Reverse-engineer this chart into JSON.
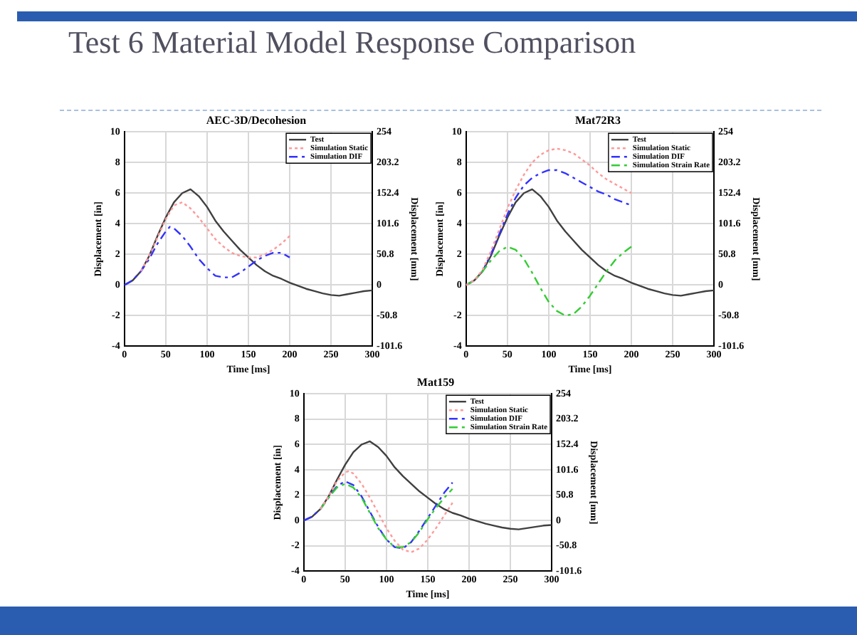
{
  "chart_data": [
    {
      "type": "line",
      "title": "AEC-3D/Decohesion",
      "xlabel": "Time [ms]",
      "ylabel": "Displacement [in]",
      "y2label": "Displacement [mm]",
      "annotations": [
        "Test 6 Material Model Response Comparison"
      ],
      "xlim": [
        0,
        300
      ],
      "xticks": [
        0,
        50,
        100,
        150,
        200,
        250,
        300
      ],
      "ylim": [
        -4,
        10
      ],
      "yticks": [
        -4,
        -2,
        0,
        2,
        4,
        6,
        8,
        10
      ],
      "y2lim": [
        -101.6,
        254
      ],
      "y2ticks": [
        -101.6,
        -50.8,
        0,
        50.8,
        101.6,
        152.4,
        203.2,
        254
      ],
      "grid": true,
      "legend": "top right",
      "marker": "none",
      "series": [
        {
          "name": "Test",
          "color": "#404040",
          "line_style": "solid",
          "x": [
            0,
            10,
            20,
            30,
            40,
            50,
            60,
            70,
            80,
            90,
            100,
            110,
            120,
            130,
            140,
            150,
            160,
            170,
            180,
            190,
            200,
            210,
            220,
            230,
            240,
            250,
            260,
            270,
            280,
            290,
            300
          ],
          "values": [
            0,
            0.3,
            0.9,
            1.9,
            3.2,
            4.4,
            5.4,
            6.0,
            6.25,
            5.8,
            5.1,
            4.2,
            3.5,
            2.9,
            2.3,
            1.8,
            1.3,
            0.9,
            0.6,
            0.4,
            0.15,
            -0.05,
            -0.25,
            -0.4,
            -0.55,
            -0.65,
            -0.7,
            -0.6,
            -0.5,
            -0.4,
            -0.35
          ]
        },
        {
          "name": "Simulation Static",
          "color": "#ff9999",
          "line_style": "dotted",
          "x": [
            20,
            30,
            40,
            50,
            60,
            70,
            80,
            90,
            100,
            110,
            120,
            130,
            140,
            150,
            160,
            170,
            180,
            190,
            200
          ],
          "values": [
            0.9,
            1.9,
            3.1,
            4.3,
            5.2,
            5.4,
            5.0,
            4.4,
            3.7,
            3.0,
            2.5,
            2.1,
            1.9,
            1.8,
            1.8,
            2.0,
            2.3,
            2.7,
            3.2
          ]
        },
        {
          "name": "Simulation DIF",
          "color": "#3333ff",
          "line_style": "dashed",
          "x": [
            0,
            10,
            20,
            30,
            40,
            50,
            55,
            60,
            70,
            80,
            90,
            100,
            110,
            120,
            130,
            140,
            150,
            160,
            170,
            180,
            190,
            200
          ],
          "values": [
            0,
            0.3,
            0.9,
            1.7,
            2.7,
            3.5,
            3.8,
            3.7,
            3.2,
            2.5,
            1.7,
            1.1,
            0.6,
            0.5,
            0.5,
            0.8,
            1.2,
            1.6,
            1.9,
            2.1,
            2.1,
            1.8
          ]
        }
      ]
    },
    {
      "type": "line",
      "title": "Mat72R3",
      "xlabel": "Time [ms]",
      "ylabel": "Displacement [in]",
      "y2label": "Displacement [mm]",
      "xlim": [
        0,
        300
      ],
      "xticks": [
        0,
        50,
        100,
        150,
        200,
        250,
        300
      ],
      "ylim": [
        -4,
        10
      ],
      "yticks": [
        -4,
        -2,
        0,
        2,
        4,
        6,
        8,
        10
      ],
      "y2lim": [
        -101.6,
        254
      ],
      "y2ticks": [
        -101.6,
        -50.8,
        0,
        50.8,
        101.6,
        152.4,
        203.2,
        254
      ],
      "grid": true,
      "legend": "top right",
      "marker": "none",
      "series": [
        {
          "name": "Test",
          "color": "#404040",
          "line_style": "solid",
          "x": [
            0,
            10,
            20,
            30,
            40,
            50,
            60,
            70,
            80,
            90,
            100,
            110,
            120,
            130,
            140,
            150,
            160,
            170,
            180,
            190,
            200,
            210,
            220,
            230,
            240,
            250,
            260,
            270,
            280,
            290,
            300
          ],
          "values": [
            0,
            0.3,
            0.9,
            1.9,
            3.2,
            4.4,
            5.4,
            6.0,
            6.25,
            5.8,
            5.1,
            4.2,
            3.5,
            2.9,
            2.3,
            1.8,
            1.3,
            0.9,
            0.6,
            0.4,
            0.15,
            -0.05,
            -0.25,
            -0.4,
            -0.55,
            -0.65,
            -0.7,
            -0.6,
            -0.5,
            -0.4,
            -0.35
          ]
        },
        {
          "name": "Simulation Static",
          "color": "#ff9999",
          "line_style": "dotted",
          "x": [
            0,
            10,
            20,
            30,
            40,
            50,
            60,
            70,
            80,
            90,
            100,
            110,
            120,
            130,
            140,
            150,
            160,
            170,
            180,
            190,
            200
          ],
          "values": [
            0,
            0.3,
            1.0,
            2.2,
            3.6,
            5.0,
            6.2,
            7.2,
            8.0,
            8.5,
            8.8,
            8.9,
            8.8,
            8.6,
            8.2,
            7.8,
            7.3,
            6.9,
            6.6,
            6.3,
            6.0
          ]
        },
        {
          "name": "Simulation DIF",
          "color": "#3333ff",
          "line_style": "dashed",
          "x": [
            0,
            10,
            20,
            30,
            40,
            50,
            60,
            70,
            80,
            90,
            100,
            110,
            120,
            130,
            140,
            150,
            160,
            170,
            180,
            190,
            200
          ],
          "values": [
            0,
            0.3,
            0.9,
            2.0,
            3.3,
            4.6,
            5.7,
            6.5,
            7.0,
            7.3,
            7.5,
            7.5,
            7.3,
            7.0,
            6.7,
            6.4,
            6.1,
            5.9,
            5.6,
            5.4,
            5.2
          ]
        },
        {
          "name": "Simulation Strain Rate",
          "color": "#33cc33",
          "line_style": "dashed",
          "x": [
            0,
            10,
            20,
            30,
            40,
            50,
            60,
            70,
            80,
            90,
            100,
            110,
            120,
            130,
            140,
            150,
            160,
            170,
            180,
            190,
            200
          ],
          "values": [
            0,
            0.3,
            0.9,
            1.6,
            2.2,
            2.5,
            2.3,
            1.7,
            0.8,
            -0.2,
            -1.1,
            -1.7,
            -2.0,
            -1.9,
            -1.4,
            -0.7,
            0.1,
            0.9,
            1.6,
            2.1,
            2.5
          ]
        }
      ]
    },
    {
      "type": "line",
      "title": "Mat159",
      "xlabel": "Time [ms]",
      "ylabel": "Displacement [in]",
      "y2label": "Displacement [mm]",
      "xlim": [
        0,
        300
      ],
      "xticks": [
        0,
        50,
        100,
        150,
        200,
        250,
        300
      ],
      "ylim": [
        -4,
        10
      ],
      "yticks": [
        -4,
        -2,
        0,
        2,
        4,
        6,
        8,
        10
      ],
      "y2lim": [
        -101.6,
        254
      ],
      "y2ticks": [
        -101.6,
        -50.8,
        0,
        50.8,
        101.6,
        152.4,
        203.2,
        254
      ],
      "grid": true,
      "legend": "top right",
      "marker": "none",
      "series": [
        {
          "name": "Test",
          "color": "#404040",
          "line_style": "solid",
          "x": [
            0,
            10,
            20,
            30,
            40,
            50,
            60,
            70,
            80,
            90,
            100,
            110,
            120,
            130,
            140,
            150,
            160,
            170,
            180,
            190,
            200,
            210,
            220,
            230,
            240,
            250,
            260,
            270,
            280,
            290,
            300
          ],
          "values": [
            0,
            0.3,
            0.9,
            1.9,
            3.2,
            4.4,
            5.4,
            6.0,
            6.25,
            5.8,
            5.1,
            4.2,
            3.5,
            2.9,
            2.3,
            1.8,
            1.3,
            0.9,
            0.6,
            0.4,
            0.15,
            -0.05,
            -0.25,
            -0.4,
            -0.55,
            -0.65,
            -0.7,
            -0.6,
            -0.5,
            -0.4,
            -0.35
          ]
        },
        {
          "name": "Simulation Static",
          "color": "#ff9999",
          "line_style": "dotted",
          "x": [
            20,
            30,
            40,
            50,
            55,
            60,
            70,
            80,
            90,
            100,
            110,
            120,
            130,
            140,
            150,
            160,
            170,
            180
          ],
          "values": [
            0.9,
            1.9,
            3.1,
            3.8,
            3.9,
            3.7,
            2.9,
            1.8,
            0.6,
            -0.6,
            -1.6,
            -2.3,
            -2.5,
            -2.2,
            -1.5,
            -0.6,
            0.4,
            1.4
          ]
        },
        {
          "name": "Simulation DIF",
          "color": "#3333ff",
          "line_style": "dashed",
          "x": [
            0,
            10,
            20,
            30,
            40,
            50,
            60,
            70,
            80,
            90,
            100,
            110,
            120,
            130,
            140,
            150,
            160,
            170,
            180
          ],
          "values": [
            0,
            0.3,
            0.9,
            1.8,
            2.7,
            3.1,
            2.8,
            1.9,
            0.7,
            -0.5,
            -1.5,
            -2.1,
            -2.2,
            -1.7,
            -0.8,
            0.2,
            1.2,
            2.2,
            3.0
          ]
        },
        {
          "name": "Simulation Strain Rate",
          "color": "#33cc33",
          "line_style": "dashed",
          "x": [
            20,
            30,
            40,
            50,
            60,
            70,
            80,
            90,
            100,
            110,
            120,
            130,
            140,
            150,
            160,
            170,
            180
          ],
          "values": [
            0.9,
            1.8,
            2.6,
            2.9,
            2.6,
            1.8,
            0.6,
            -0.6,
            -1.5,
            -2.1,
            -2.1,
            -1.7,
            -0.9,
            0.1,
            1.0,
            1.8,
            2.5
          ]
        }
      ]
    }
  ]
}
